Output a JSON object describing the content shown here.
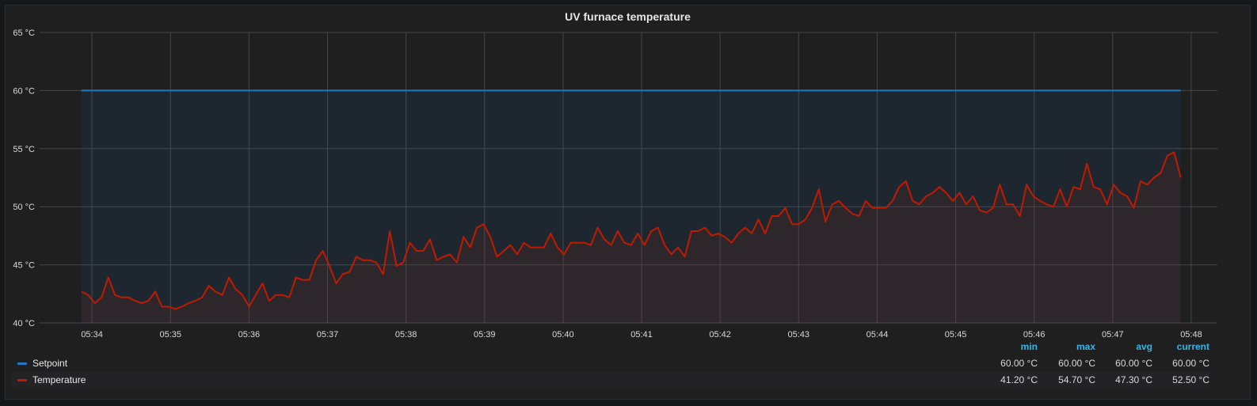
{
  "panel": {
    "title": "UV furnace temperature"
  },
  "colors": {
    "setpoint": "#1f78c1",
    "temperature": "#bf1b00",
    "grid": "#464646",
    "axis_text": "#d8d9da",
    "legend_header": "#33b5e5"
  },
  "legend": {
    "headers": [
      "min",
      "max",
      "avg",
      "current"
    ],
    "rows": [
      {
        "name": "Setpoint",
        "min": "60.00 °C",
        "max": "60.00 °C",
        "avg": "60.00 °C",
        "current": "60.00 °C"
      },
      {
        "name": "Temperature",
        "min": "41.20 °C",
        "max": "54.70 °C",
        "avg": "47.30 °C",
        "current": "52.50 °C"
      }
    ]
  },
  "chart_data": {
    "type": "line",
    "title": "UV furnace temperature",
    "xlabel": "",
    "ylabel": "",
    "x_start": "05:33:52",
    "x_end": "05:47:52",
    "xlim": [
      "05:33:20",
      "05:48:20"
    ],
    "ylim": [
      40,
      65
    ],
    "x_ticks": [
      "05:34",
      "05:35",
      "05:36",
      "05:37",
      "05:38",
      "05:39",
      "05:40",
      "05:41",
      "05:42",
      "05:43",
      "05:44",
      "05:45",
      "05:46",
      "05:47",
      "05:48"
    ],
    "y_ticks": [
      "40 °C",
      "45 °C",
      "50 °C",
      "55 °C",
      "60 °C",
      "65 °C"
    ],
    "y_tick_values": [
      40,
      45,
      50,
      55,
      60,
      65
    ],
    "grid": true,
    "legend_position": "bottom",
    "series": [
      {
        "name": "Setpoint",
        "fill": true,
        "values": [
          60,
          60
        ]
      },
      {
        "name": "Temperature",
        "fill": true,
        "values": [
          42.7,
          42.4,
          41.7,
          42.2,
          43.9,
          42.4,
          42.2,
          42.2,
          41.9,
          41.7,
          41.9,
          42.7,
          41.4,
          41.4,
          41.2,
          41.4,
          41.7,
          41.9,
          42.2,
          43.2,
          42.7,
          42.4,
          43.9,
          42.9,
          42.4,
          41.4,
          42.4,
          43.4,
          41.9,
          42.4,
          42.4,
          42.2,
          43.9,
          43.7,
          43.7,
          45.4,
          46.2,
          44.9,
          43.4,
          44.2,
          44.4,
          45.7,
          45.4,
          45.4,
          45.2,
          44.2,
          47.9,
          44.9,
          45.2,
          46.9,
          46.2,
          46.2,
          47.2,
          45.4,
          45.7,
          45.9,
          45.2,
          47.4,
          46.5,
          48.2,
          48.5,
          47.4,
          45.7,
          46.2,
          46.7,
          45.9,
          46.9,
          46.5,
          46.5,
          46.5,
          47.7,
          46.5,
          45.9,
          46.9,
          46.9,
          46.9,
          46.7,
          48.2,
          47.2,
          46.7,
          47.9,
          46.9,
          46.7,
          47.7,
          46.7,
          47.9,
          48.2,
          46.7,
          45.9,
          46.5,
          45.7,
          47.9,
          47.9,
          48.2,
          47.5,
          47.7,
          47.4,
          46.9,
          47.7,
          48.2,
          47.7,
          48.9,
          47.7,
          49.2,
          49.2,
          49.9,
          48.5,
          48.5,
          48.9,
          49.9,
          51.5,
          48.7,
          50.2,
          50.5,
          49.9,
          49.4,
          49.2,
          50.5,
          49.9,
          49.9,
          49.9,
          50.5,
          51.7,
          52.2,
          50.5,
          50.2,
          50.9,
          51.2,
          51.7,
          51.2,
          50.5,
          51.2,
          50.2,
          50.9,
          49.7,
          49.5,
          49.9,
          51.9,
          50.2,
          50.2,
          49.2,
          51.9,
          50.9,
          50.5,
          50.2,
          50.0,
          51.5,
          50.0,
          51.7,
          51.5,
          53.7,
          51.7,
          51.5,
          50.2,
          51.9,
          51.2,
          50.9,
          49.9,
          52.2,
          51.9,
          52.5,
          52.9,
          54.4,
          54.7,
          52.5
        ]
      }
    ]
  }
}
